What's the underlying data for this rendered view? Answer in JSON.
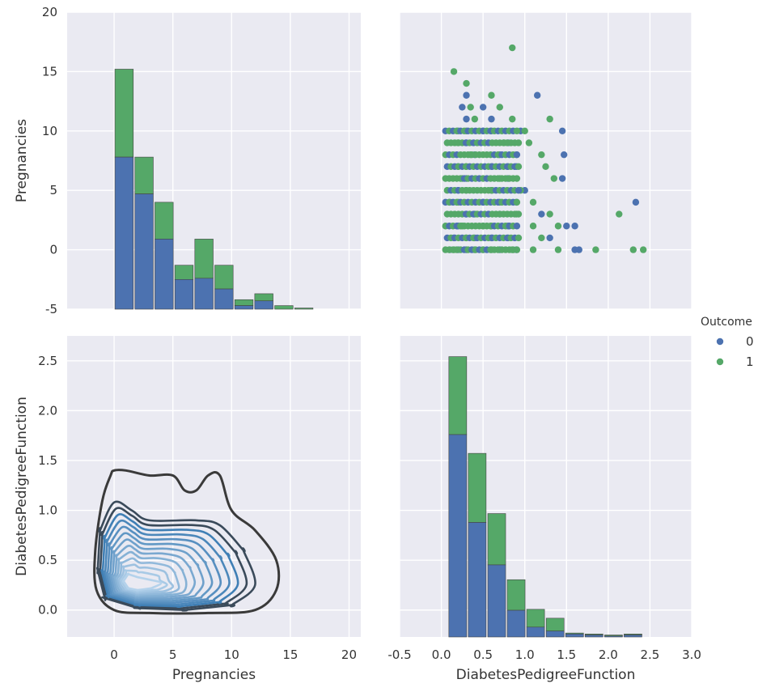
{
  "chart_data": {
    "type": "pairgrid",
    "hue": "Outcome",
    "legend": {
      "title": "Outcome",
      "position": "right-center",
      "entries": [
        {
          "label": "0",
          "color": "#4c72b0"
        },
        {
          "label": "1",
          "color": "#55a868"
        }
      ]
    },
    "colors": {
      "0": "#4c72b0",
      "1": "#55a868",
      "kde": "#3a3a3a",
      "kde_light": "#c6dbef"
    },
    "variables": [
      "Pregnancies",
      "DiabetesPedigreeFunction"
    ],
    "panels": {
      "preg_hist": {
        "type": "bar",
        "y_tick_labels": [
          "-5",
          "0",
          "5",
          "10",
          "15",
          "20"
        ],
        "ylim": [
          -5,
          20
        ],
        "ylabel": "Pregnancies",
        "bin_width": 1.7,
        "bins": [
          {
            "x": 0.0,
            "count_0": 12.8,
            "total": 20.2
          },
          {
            "x": 1.7,
            "count_0": 9.7,
            "total": 12.8
          },
          {
            "x": 3.4,
            "count_0": 5.9,
            "total": 9.0
          },
          {
            "x": 5.1,
            "count_0": 2.5,
            "total": 3.7
          },
          {
            "x": 6.8,
            "count_0": 2.6,
            "total": 5.9
          },
          {
            "x": 8.5,
            "count_0": 1.7,
            "total": 3.7
          },
          {
            "x": 10.2,
            "count_0": 0.3,
            "total": 0.8
          },
          {
            "x": 11.9,
            "count_0": 0.7,
            "total": 1.3
          },
          {
            "x": 13.6,
            "count_0": 0.0,
            "total": 0.3
          },
          {
            "x": 15.3,
            "count_0": 0.0,
            "total": 0.1
          }
        ]
      },
      "scatter": {
        "type": "scatter",
        "points_0": [
          [
            0.1,
            0
          ],
          [
            0.2,
            0
          ],
          [
            0.3,
            0
          ],
          [
            0.5,
            0
          ],
          [
            0.7,
            0
          ],
          [
            0.9,
            0
          ],
          [
            1.6,
            0
          ],
          [
            1.65,
            0
          ],
          [
            0.15,
            1
          ],
          [
            0.4,
            1
          ],
          [
            0.6,
            1
          ],
          [
            1.3,
            1
          ],
          [
            0.2,
            2
          ],
          [
            0.5,
            2
          ],
          [
            0.8,
            2
          ],
          [
            1.5,
            2
          ],
          [
            1.6,
            2
          ],
          [
            0.3,
            3
          ],
          [
            0.7,
            3
          ],
          [
            1.2,
            3
          ],
          [
            0.1,
            4
          ],
          [
            0.5,
            4
          ],
          [
            0.9,
            4
          ],
          [
            2.33,
            4
          ],
          [
            0.2,
            5
          ],
          [
            0.6,
            5
          ],
          [
            1.0,
            5
          ],
          [
            0.3,
            6
          ],
          [
            0.8,
            6
          ],
          [
            1.45,
            6
          ],
          [
            0.2,
            7
          ],
          [
            0.6,
            7
          ],
          [
            0.9,
            7
          ],
          [
            0.4,
            8
          ],
          [
            0.7,
            8
          ],
          [
            1.47,
            8
          ],
          [
            0.3,
            9
          ],
          [
            0.8,
            9
          ],
          [
            0.2,
            10
          ],
          [
            0.5,
            10
          ],
          [
            0.95,
            10
          ],
          [
            1.45,
            10
          ],
          [
            0.3,
            11
          ],
          [
            0.6,
            11
          ],
          [
            0.25,
            12
          ],
          [
            0.5,
            12
          ],
          [
            0.3,
            13
          ],
          [
            1.15,
            13
          ]
        ],
        "points_1": [
          [
            0.15,
            0
          ],
          [
            0.4,
            0
          ],
          [
            0.6,
            0
          ],
          [
            0.85,
            0
          ],
          [
            1.1,
            0
          ],
          [
            1.4,
            0
          ],
          [
            1.85,
            0
          ],
          [
            2.3,
            0
          ],
          [
            2.42,
            0
          ],
          [
            0.3,
            1
          ],
          [
            0.8,
            1
          ],
          [
            1.2,
            1
          ],
          [
            0.25,
            2
          ],
          [
            0.6,
            2
          ],
          [
            1.1,
            2
          ],
          [
            1.4,
            2
          ],
          [
            0.4,
            3
          ],
          [
            0.9,
            3
          ],
          [
            1.3,
            3
          ],
          [
            2.13,
            3
          ],
          [
            0.2,
            4
          ],
          [
            0.7,
            4
          ],
          [
            1.1,
            4
          ],
          [
            0.3,
            5
          ],
          [
            0.6,
            5
          ],
          [
            0.95,
            5
          ],
          [
            0.25,
            6
          ],
          [
            0.7,
            6
          ],
          [
            1.35,
            6
          ],
          [
            0.3,
            7
          ],
          [
            0.8,
            7
          ],
          [
            1.25,
            7
          ],
          [
            0.35,
            8
          ],
          [
            0.9,
            8
          ],
          [
            1.2,
            8
          ],
          [
            0.2,
            9
          ],
          [
            0.75,
            9
          ],
          [
            1.05,
            9
          ],
          [
            0.3,
            10
          ],
          [
            0.6,
            10
          ],
          [
            1.0,
            10
          ],
          [
            0.4,
            11
          ],
          [
            0.85,
            11
          ],
          [
            1.3,
            11
          ],
          [
            0.35,
            12
          ],
          [
            0.7,
            12
          ],
          [
            0.6,
            13
          ],
          [
            0.3,
            14
          ],
          [
            0.15,
            15
          ],
          [
            0.85,
            17
          ]
        ]
      },
      "kde": {
        "type": "kde",
        "x_tick_labels": [
          "0",
          "5",
          "10",
          "15",
          "20"
        ],
        "y_tick_labels": [
          "0.0",
          "0.5",
          "1.0",
          "1.5",
          "2.0",
          "2.5"
        ],
        "xlim": [
          -4,
          21
        ],
        "ylim": [
          -0.27,
          2.75
        ],
        "xlabel": "Pregnancies",
        "ylabel": "DiabetesPedigreeFunction"
      },
      "dpf_hist": {
        "type": "bar",
        "x_tick_labels": [
          "-0.5",
          "0.0",
          "0.5",
          "1.0",
          "1.5",
          "2.0",
          "2.5",
          "3.0"
        ],
        "xlim": [
          -0.5,
          3.0
        ],
        "xlabel": "DiabetesPedigreeFunction",
        "bin_width": 0.233,
        "bins": [
          {
            "x": 0.08,
            "count_0": 2.05,
            "total": 2.84
          },
          {
            "x": 0.313,
            "count_0": 1.16,
            "total": 1.86
          },
          {
            "x": 0.547,
            "count_0": 0.73,
            "total": 1.25
          },
          {
            "x": 0.78,
            "count_0": 0.27,
            "total": 0.58
          },
          {
            "x": 1.013,
            "count_0": 0.1,
            "total": 0.28
          },
          {
            "x": 1.247,
            "count_0": 0.06,
            "total": 0.19
          },
          {
            "x": 1.48,
            "count_0": 0.03,
            "total": 0.04
          },
          {
            "x": 1.713,
            "count_0": 0.02,
            "total": 0.03
          },
          {
            "x": 1.947,
            "count_0": 0.01,
            "total": 0.02
          },
          {
            "x": 2.18,
            "count_0": 0.02,
            "total": 0.03
          }
        ]
      }
    }
  }
}
